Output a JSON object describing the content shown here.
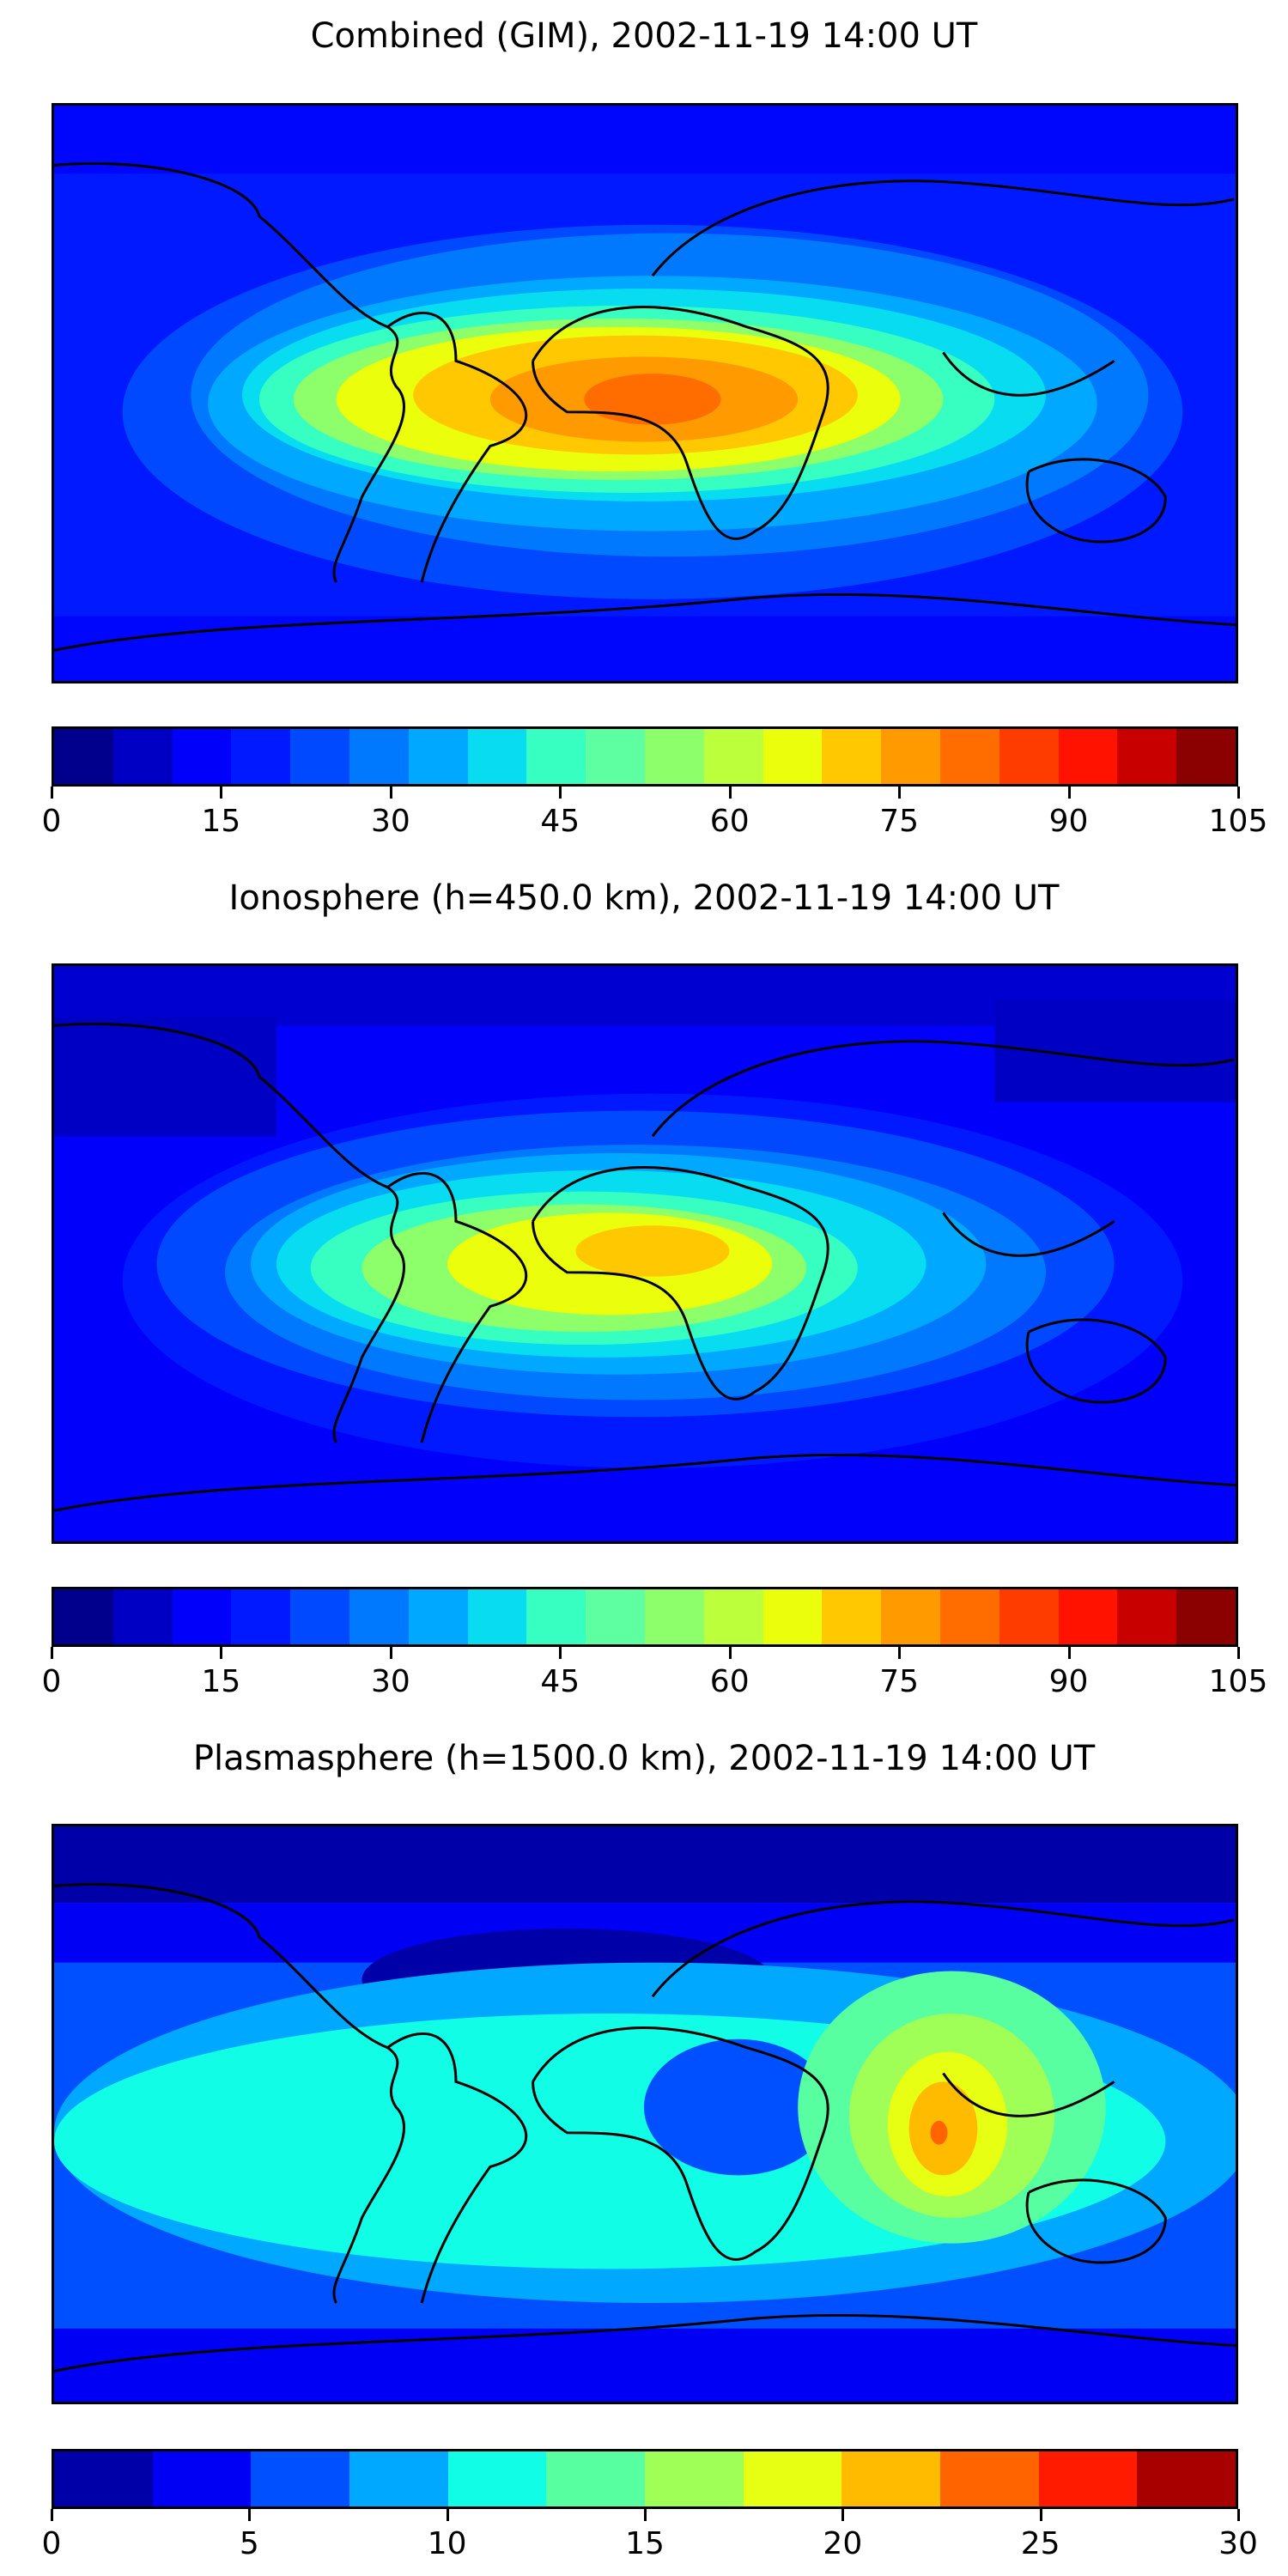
{
  "figure": {
    "panels": [
      {
        "id": "combined",
        "title": "Combined (GIM), 2002-11-19 14:00 UT",
        "colorbar": {
          "ticks": [
            "0",
            "15",
            "30",
            "45",
            "60",
            "75",
            "90",
            "105"
          ],
          "range": [
            0,
            105
          ],
          "colors": [
            "#00008d",
            "#0000c5",
            "#0000fb",
            "#0019ff",
            "#0049ff",
            "#0079ff",
            "#00a9ff",
            "#08dcf0",
            "#36ffc1",
            "#5effa0",
            "#8cff6a",
            "#bcff3b",
            "#ebff0c",
            "#ffc800",
            "#ff9a00",
            "#ff6c00",
            "#ff3c00",
            "#ff1200",
            "#c90000",
            "#8b0000"
          ]
        }
      },
      {
        "id": "ionosphere",
        "title": "Ionosphere  (h=450.0 km), 2002-11-19 14:00 UT",
        "colorbar": {
          "ticks": [
            "0",
            "15",
            "30",
            "45",
            "60",
            "75",
            "90",
            "105"
          ],
          "range": [
            0,
            105
          ],
          "colors": [
            "#00008d",
            "#0000c5",
            "#0000fb",
            "#0019ff",
            "#0049ff",
            "#0079ff",
            "#00a9ff",
            "#08dcf0",
            "#36ffc1",
            "#5effa0",
            "#8cff6a",
            "#bcff3b",
            "#ebff0c",
            "#ffc800",
            "#ff9a00",
            "#ff6c00",
            "#ff3c00",
            "#ff1200",
            "#c90000",
            "#8b0000"
          ]
        }
      },
      {
        "id": "plasmasphere",
        "title": "Plasmasphere (h=1500.0 km), 2002-11-19 14:00 UT",
        "colorbar": {
          "ticks": [
            "0",
            "5",
            "10",
            "15",
            "20",
            "25",
            "30"
          ],
          "range": [
            0,
            30
          ],
          "colors": [
            "#0000a8",
            "#0000f5",
            "#0050ff",
            "#00a8ff",
            "#12fde6",
            "#57ffa0",
            "#a0ff57",
            "#e6ff12",
            "#ffbb00",
            "#ff6400",
            "#ff1b00",
            "#a80000"
          ]
        }
      }
    ]
  }
}
